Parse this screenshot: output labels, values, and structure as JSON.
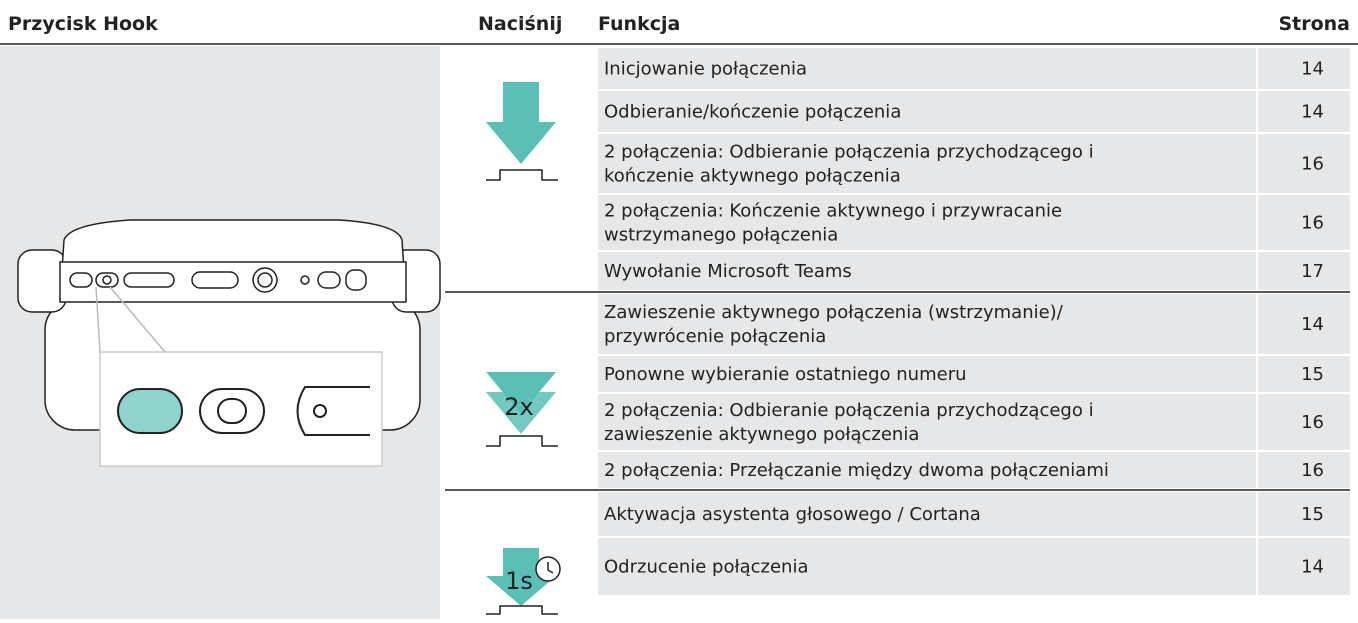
{
  "header": {
    "columns": [
      "Przycisk Hook",
      "Naciśnij",
      "Funkcja",
      "Strona"
    ]
  },
  "groups": [
    {
      "rows": [
        {
          "function": "Inicjowanie połączenia",
          "page": "14"
        },
        {
          "function": "Odbieranie/kończenie połączenia",
          "page": "14"
        },
        {
          "function": "2 połączenia: Odbieranie połączenia przychodzącego i\nkończenie aktywnego połączenia",
          "page": "16"
        },
        {
          "function": "2 połączenia: Kończenie aktywnego i przywracanie\nwstrzymanego połączenia",
          "page": "16"
        },
        {
          "function": "Wywołanie Microsoft Teams",
          "page": "17"
        }
      ]
    },
    {
      "press": "2x",
      "rows": [
        {
          "function": "Zawieszenie aktywnego połączenia (wstrzymanie)/\nprzywrócenie połączenia",
          "page": "14"
        },
        {
          "function": "Ponowne wybieranie ostatniego numeru",
          "page": "15"
        },
        {
          "function": "2 połączenia: Odbieranie połączenia przychodzącego i\nzawieszenie aktywnego połączenia",
          "page": "16"
        },
        {
          "function": "2 połączenia: Przełączanie między dwoma połączeniami",
          "page": "16"
        }
      ]
    },
    {
      "press": "1s",
      "rows": [
        {
          "function": "Aktywacja asystenta głosowego / Cortana",
          "page": "15"
        },
        {
          "function": "Odrzucenie połączenia",
          "page": "14"
        }
      ]
    }
  ]
}
